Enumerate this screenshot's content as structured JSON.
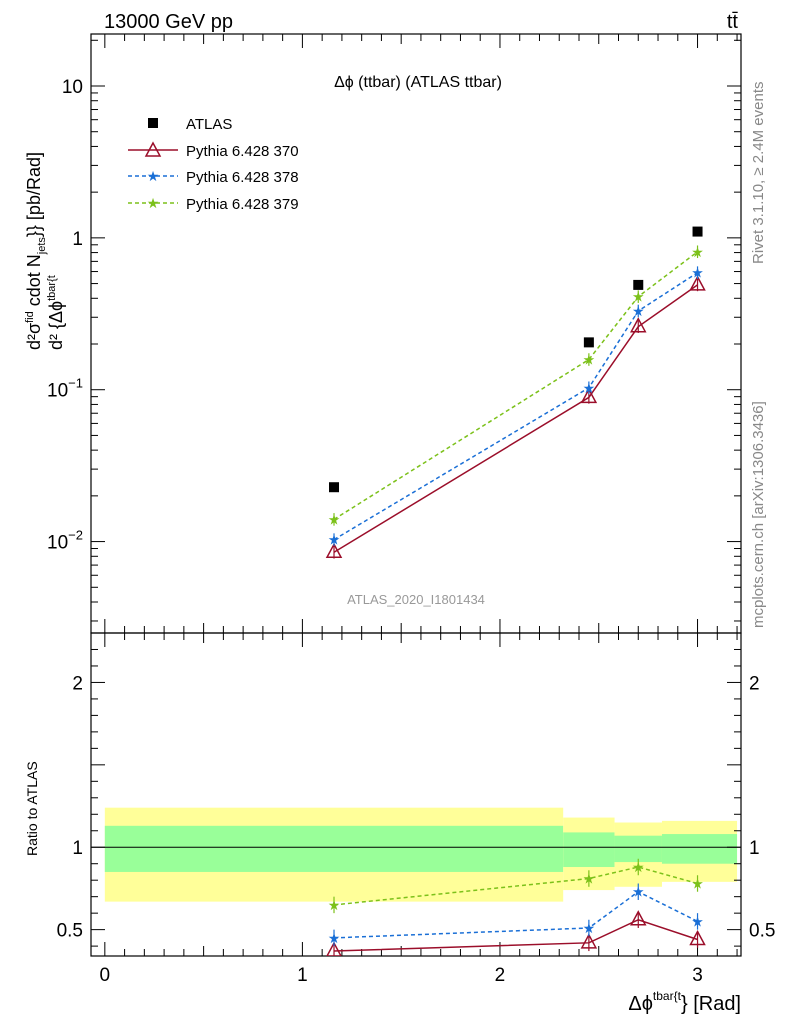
{
  "header": {
    "energy_label": "13000 GeV pp",
    "process_label": "tt̄"
  },
  "side_labels": {
    "rivet": "Rivet 3.1.10, ≥ 2.4M events",
    "mcplots": "mcplots.cern.ch [arXiv:1306.3436]"
  },
  "colors": {
    "atlas": "#000000",
    "py370": "#9b0e2a",
    "py378": "#1a6fd6",
    "py379": "#7cc11a",
    "band_yellow": "#ffff99",
    "band_green": "#99ff99"
  },
  "chart_data": [
    {
      "type": "scatter",
      "panel": "main",
      "title": "Δϕ (ttbar) (ATLAS ttbar)",
      "watermark": "ATLAS_2020_I1801434",
      "ylabel_parts": [
        "d²σ",
        "fid",
        "d² {Δϕ",
        "tbar{t",
        " cdot N",
        "jets",
        "}} [pb/Rad]"
      ],
      "yscale": "log",
      "xlim": [
        -0.07,
        3.22
      ],
      "ylim": [
        0.0025,
        22
      ],
      "ytick_labels": [
        "10",
        "1",
        "10⁻¹",
        "10⁻²"
      ],
      "legend_position": "top-left",
      "x": [
        1.16,
        2.45,
        2.7,
        3.0
      ],
      "series": [
        {
          "name": "ATLAS",
          "marker": "square",
          "values": [
            0.0228,
            0.205,
            0.49,
            1.1
          ]
        },
        {
          "name": "Pythia 6.428 370",
          "marker": "triangle",
          "line": "solid",
          "values": [
            0.0085,
            0.089,
            0.26,
            0.49
          ]
        },
        {
          "name": "Pythia 6.428 378",
          "marker": "star",
          "line": "dashed",
          "values": [
            0.0103,
            0.103,
            0.33,
            0.59
          ]
        },
        {
          "name": "Pythia 6.428 379",
          "marker": "star",
          "line": "dashed",
          "values": [
            0.014,
            0.158,
            0.41,
            0.81
          ]
        }
      ]
    },
    {
      "type": "line",
      "panel": "ratio",
      "ylabel": "Ratio to ATLAS",
      "xlabel_parts": [
        "Δϕ",
        "tbar{t",
        "} [Rad]"
      ],
      "xlim": [
        -0.07,
        3.22
      ],
      "ylim": [
        0.34,
        2.3
      ],
      "xtick_labels": [
        "0",
        "1",
        "2",
        "3"
      ],
      "ytick_labels": [
        "0.5",
        "1",
        "2"
      ],
      "bands": [
        {
          "x0": 0.0,
          "x1": 2.32,
          "yellow": [
            0.67,
            1.24
          ],
          "green": [
            0.85,
            1.13
          ]
        },
        {
          "x0": 2.32,
          "x1": 2.58,
          "yellow": [
            0.74,
            1.18
          ],
          "green": [
            0.88,
            1.09
          ]
        },
        {
          "x0": 2.58,
          "x1": 2.82,
          "yellow": [
            0.76,
            1.15
          ],
          "green": [
            0.91,
            1.07
          ]
        },
        {
          "x0": 2.82,
          "x1": 3.2,
          "yellow": [
            0.79,
            1.16
          ],
          "green": [
            0.9,
            1.08
          ]
        }
      ],
      "x": [
        1.16,
        2.45,
        2.7,
        3.0
      ],
      "series": [
        {
          "name": "Pythia 6.428 370",
          "values": [
            0.37,
            0.42,
            0.56,
            0.44
          ]
        },
        {
          "name": "Pythia 6.428 378",
          "values": [
            0.45,
            0.51,
            0.73,
            0.55
          ]
        },
        {
          "name": "Pythia 6.428 379",
          "values": [
            0.65,
            0.81,
            0.88,
            0.78
          ]
        }
      ]
    }
  ]
}
